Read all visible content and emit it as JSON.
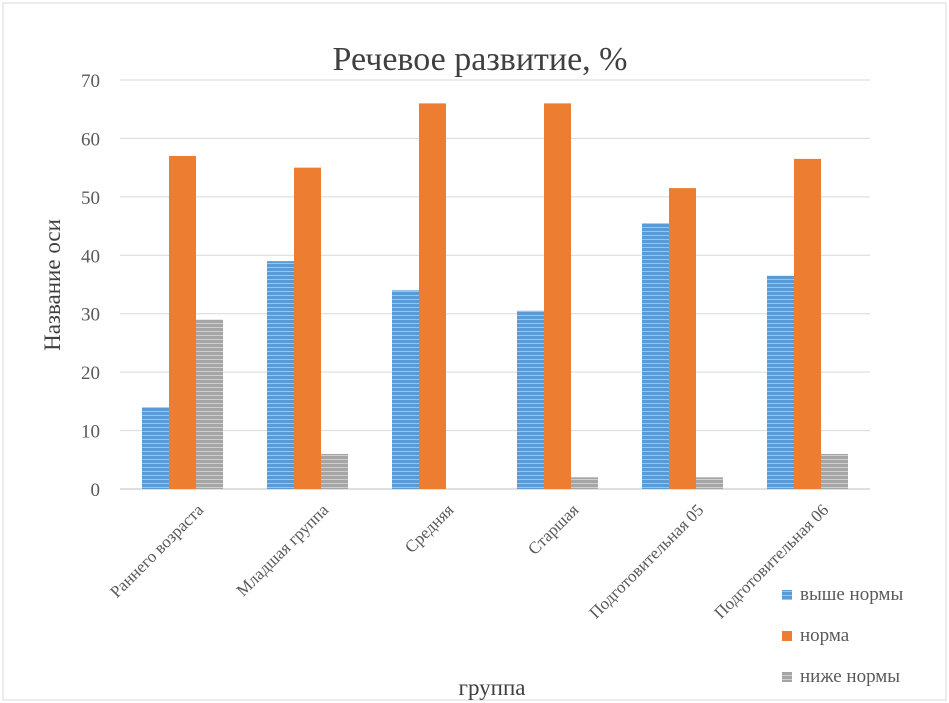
{
  "chart_data": {
    "type": "bar",
    "title": "Речевое развитие, %",
    "xlabel": "группа",
    "ylabel": "Название оси",
    "ylim": [
      0,
      70
    ],
    "yticks": [
      0,
      10,
      20,
      30,
      40,
      50,
      60,
      70
    ],
    "categories": [
      "Раннего возраста",
      "Младшая группа",
      "Средняя",
      "Старшая",
      "Подготовительная 05",
      "Подготовительная 06"
    ],
    "series": [
      {
        "name": "выше нормы",
        "color": "#5b9bd5",
        "values": [
          14,
          39,
          34,
          30.5,
          45.5,
          36.5
        ]
      },
      {
        "name": "норма",
        "color": "#ed7d31",
        "values": [
          57,
          55,
          66,
          66,
          51.5,
          56.5
        ]
      },
      {
        "name": "ниже нормы",
        "color": "#a5a5a5",
        "values": [
          29,
          6,
          0,
          2,
          2,
          6
        ]
      }
    ],
    "grid": true,
    "legend_position": "bottom-right"
  }
}
